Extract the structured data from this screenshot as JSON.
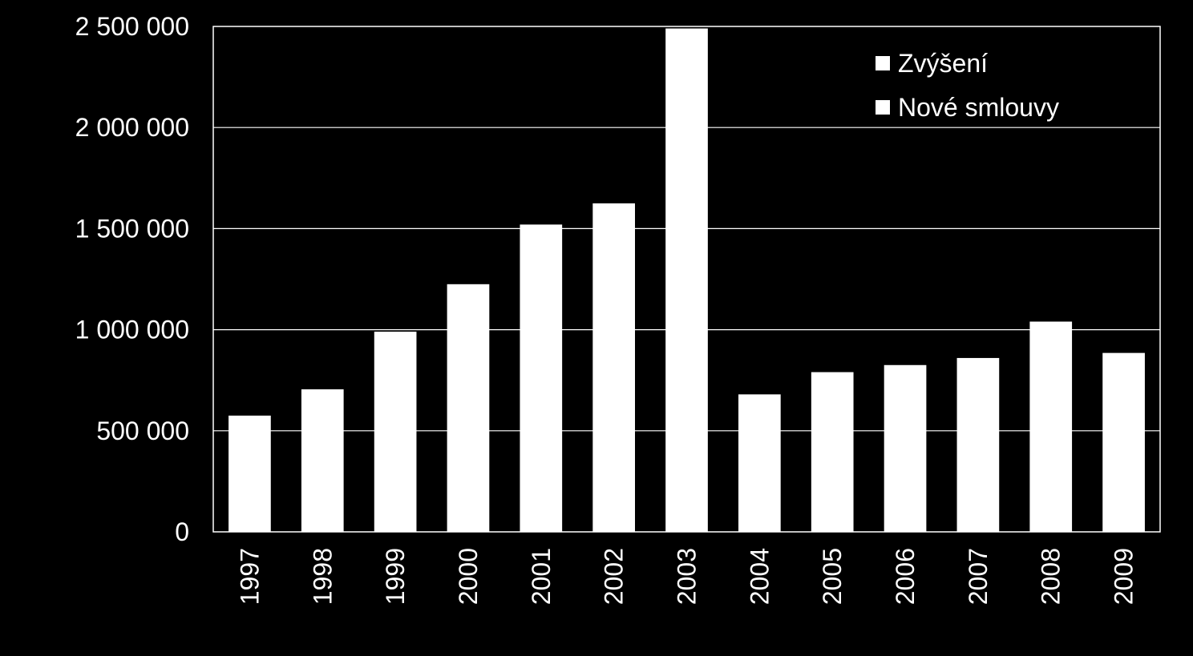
{
  "chart_data": {
    "type": "bar",
    "categories": [
      "1997",
      "1998",
      "1999",
      "2000",
      "2001",
      "2002",
      "2003",
      "2004",
      "2005",
      "2006",
      "2007",
      "2008",
      "2009"
    ],
    "series": [
      {
        "name": "Zvýšení",
        "values": [
          0,
          0,
          0,
          0,
          0,
          0,
          0,
          0,
          0,
          0,
          0,
          0,
          0
        ]
      },
      {
        "name": "Nové smlouvy",
        "values": [
          575000,
          705000,
          990000,
          1225000,
          1520000,
          1625000,
          2490000,
          680000,
          790000,
          825000,
          860000,
          1040000,
          885000
        ]
      }
    ],
    "y_ticks": [
      0,
      500000,
      1000000,
      1500000,
      2000000,
      2500000
    ],
    "y_tick_labels": [
      "0",
      "500 000",
      "1 000 000",
      "1 500 000",
      "2 000 000",
      "2 500 000"
    ],
    "ylim": [
      0,
      2500000
    ],
    "title": "",
    "xlabel": "",
    "ylabel": "",
    "grid": true,
    "legend_position": "top-right",
    "colors": {
      "background": "#000000",
      "bars": "#ffffff",
      "grid": "#ffffff",
      "text": "#ffffff"
    }
  }
}
